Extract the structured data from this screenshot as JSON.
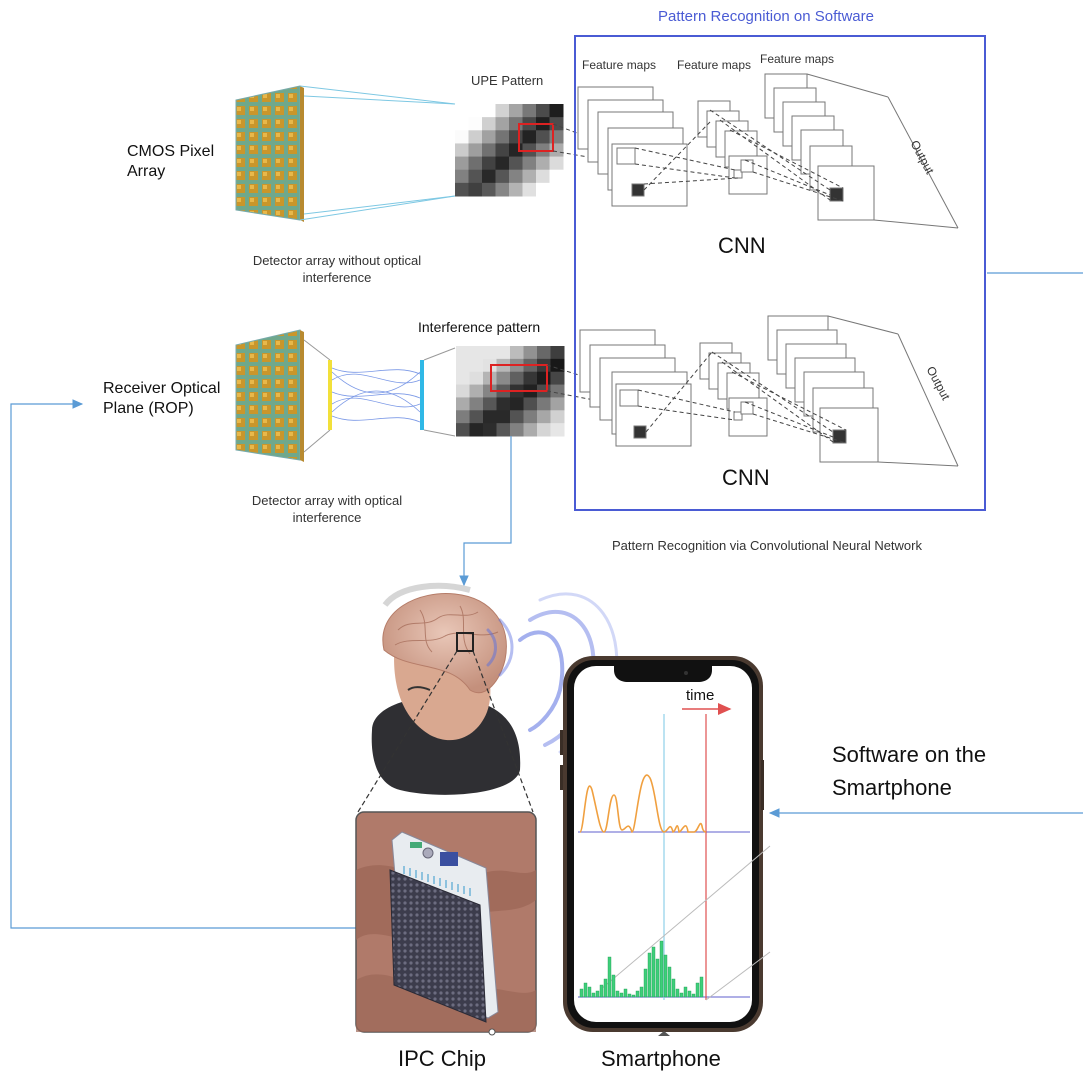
{
  "header": {
    "title": "Pattern Recognition on Software"
  },
  "top_path": {
    "sensor_label_line1": "CMOS Pixel",
    "sensor_label_line2": "Array",
    "pattern_label": "UPE Pattern",
    "caption_line1": "Detector array without optical",
    "caption_line2": "interference"
  },
  "bottom_path": {
    "sensor_label_line1": "Receiver Optical",
    "sensor_label_line2": "Plane (ROP)",
    "pattern_label": "Interference pattern",
    "caption_line1": "Detector array with optical",
    "caption_line2": "interference"
  },
  "cnn_panel": {
    "feature_maps_1": "Feature maps",
    "feature_maps_2": "Feature maps",
    "feature_maps_3": "Feature maps",
    "output_top": "Output",
    "output_bottom": "Output",
    "cnn_top": "CNN",
    "cnn_bottom": "CNN",
    "caption": "Pattern Recognition via Convolutional Neural Network"
  },
  "phone": {
    "axis_label": "time",
    "software_label_line1": "Software on the",
    "software_label_line2": "Smartphone",
    "caption": "Smartphone"
  },
  "chip": {
    "caption": "IPC Chip"
  },
  "colors": {
    "accent_blue": "#4a5bd4",
    "arrow_blue": "#5b9bd5",
    "signal_orange": "#f0a040",
    "signal_green": "#3ecf7a",
    "marker_red": "#e05050"
  }
}
